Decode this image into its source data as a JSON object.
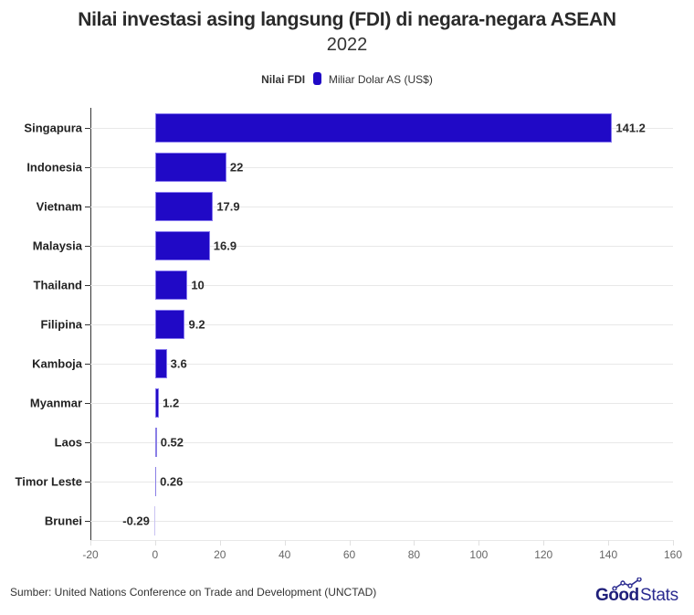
{
  "header": {
    "title": "Nilai investasi asing langsung (FDI) di negara-negara ASEAN",
    "subtitle": "2022"
  },
  "legend": {
    "title": "Nilai FDI",
    "items": [
      {
        "label": "Miliar Dolar AS (US$)",
        "color": "#2009c6"
      }
    ]
  },
  "footer": {
    "source": "Sumber: United Nations Conference on Trade and Development (UNCTAD)",
    "logo_bold": "Good",
    "logo_light": "Stats"
  },
  "chart_data": {
    "type": "bar",
    "orientation": "horizontal",
    "title": "Nilai investasi asing langsung (FDI) di negara-negara ASEAN",
    "subtitle": "2022",
    "categories": [
      "Singapura",
      "Indonesia",
      "Vietnam",
      "Malaysia",
      "Thailand",
      "Filipina",
      "Kamboja",
      "Myanmar",
      "Laos",
      "Timor Leste",
      "Brunei"
    ],
    "series": [
      {
        "name": "Miliar Dolar AS (US$)",
        "color": "#2009c6",
        "values": [
          141.2,
          22,
          17.9,
          16.9,
          10,
          9.2,
          3.6,
          1.2,
          0.52,
          0.26,
          -0.29
        ]
      }
    ],
    "value_labels": [
      "141.2",
      "22",
      "17.9",
      "16.9",
      "10",
      "9.2",
      "3.6",
      "1.2",
      "0.52",
      "0.26",
      "-0.29"
    ],
    "xlabel": "",
    "ylabel": "",
    "xlim": [
      -20,
      160
    ],
    "xticks": [
      "-20",
      "0",
      "20",
      "40",
      "60",
      "80",
      "100",
      "120",
      "140",
      "160"
    ],
    "grid": true,
    "legend_position": "top",
    "legend_title": "Nilai FDI"
  }
}
